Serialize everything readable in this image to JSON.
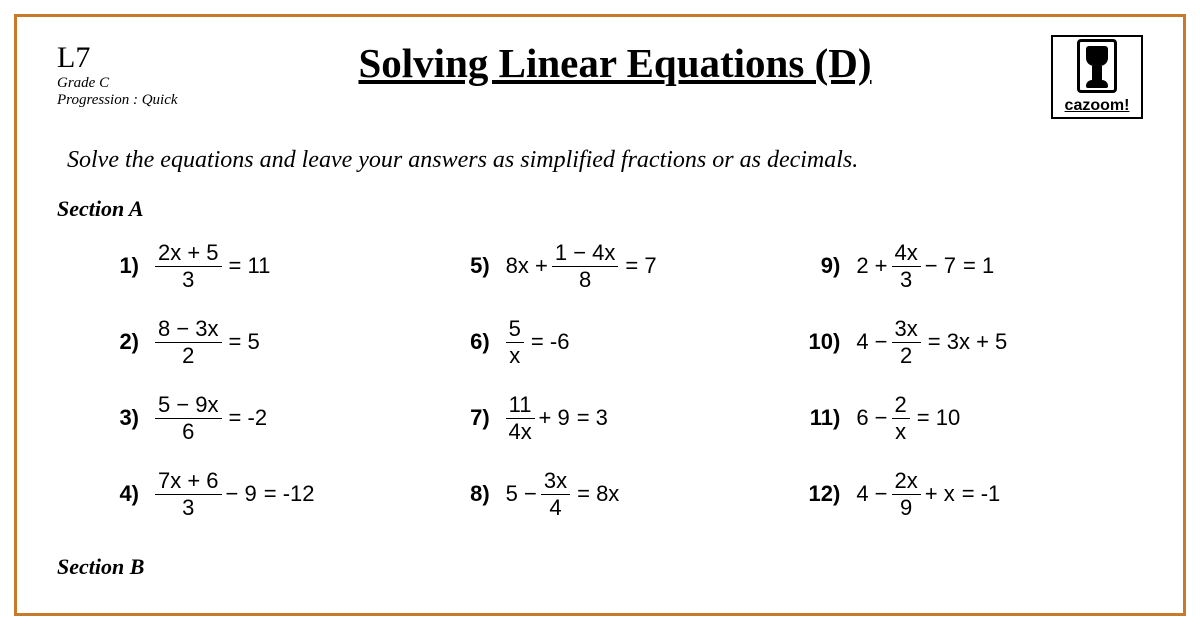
{
  "colors": {
    "border": "#c77a2a",
    "text": "#000000",
    "background": "#ffffff"
  },
  "meta": {
    "level": "L7",
    "grade": "Grade C",
    "progression": "Progression : Quick"
  },
  "title": "Solving Linear Equations (D)",
  "logo_text": "cazoom!",
  "instructions": "Solve the equations and leave your answers as simplified fractions or as decimals.",
  "section_a_label": "Section A",
  "section_b_label": "Section B",
  "problems": [
    {
      "n": "1)",
      "frac_top": "2x + 5",
      "frac_bot": "3",
      "rhs": "= 11"
    },
    {
      "n": "2)",
      "frac_top": "8 − 3x",
      "frac_bot": "2",
      "rhs": "= 5"
    },
    {
      "n": "3)",
      "frac_top": "5 − 9x",
      "frac_bot": "6",
      "rhs": "= -2"
    },
    {
      "n": "4)",
      "frac_top": "7x + 6",
      "frac_bot": "3",
      "mid": "− 9",
      "rhs": "= -12"
    },
    {
      "n": "5)",
      "pre": "8x +",
      "frac_top": "1 − 4x",
      "frac_bot": "8",
      "rhs": "= 7"
    },
    {
      "n": "6)",
      "frac_top": "5",
      "frac_bot": "x",
      "rhs": "= -6"
    },
    {
      "n": "7)",
      "frac_top": "11",
      "frac_bot": "4x",
      "mid": "+ 9",
      "rhs": "= 3"
    },
    {
      "n": "8)",
      "pre": "5 −",
      "frac_top": "3x",
      "frac_bot": "4",
      "rhs": "= 8x"
    },
    {
      "n": "9)",
      "pre": "2 +",
      "frac_top": "4x",
      "frac_bot": "3",
      "mid": "− 7",
      "rhs": "= 1"
    },
    {
      "n": "10)",
      "pre": "4 −",
      "frac_top": "3x",
      "frac_bot": "2",
      "rhs": "= 3x + 5"
    },
    {
      "n": "11)",
      "pre": "6 −",
      "frac_top": "2",
      "frac_bot": "x",
      "rhs": "= 10"
    },
    {
      "n": "12)",
      "pre": "4 −",
      "frac_top": "2x",
      "frac_bot": "9",
      "mid": "+ x",
      "rhs": "= -1"
    }
  ]
}
